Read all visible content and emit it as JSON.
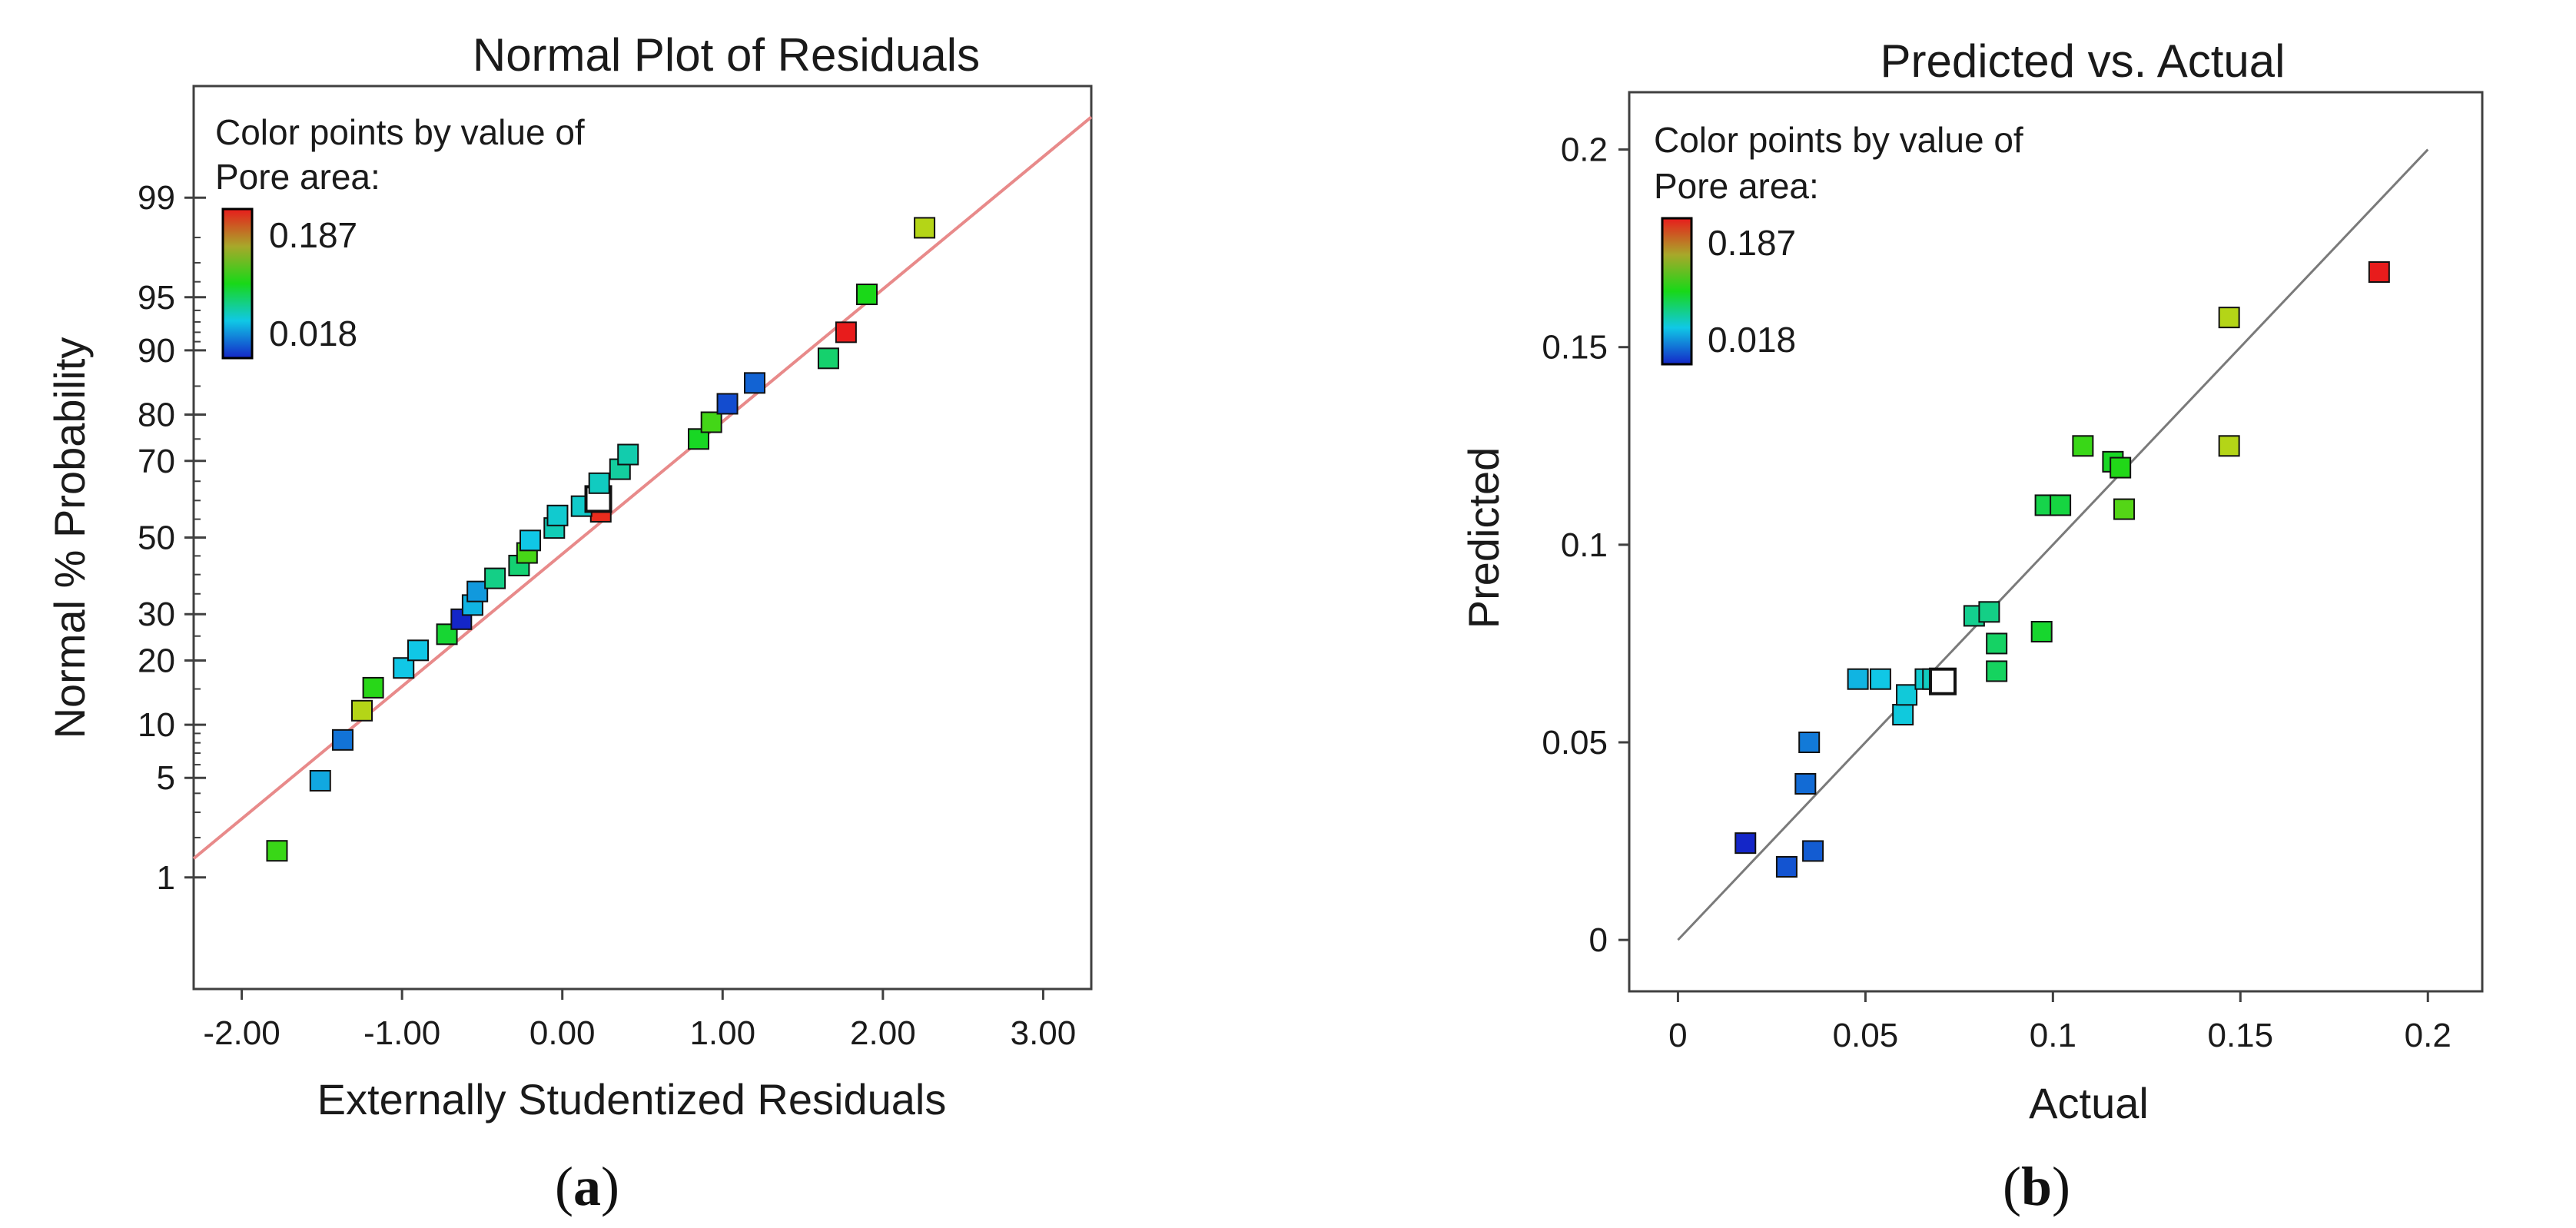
{
  "panel_labels": {
    "a": {
      "open": "(",
      "letter": "a",
      "close": ")"
    },
    "b": {
      "open": "(",
      "letter": "b",
      "close": ")"
    }
  },
  "colors": {
    "fit_line_a": "#e88a8a",
    "fit_line_b": "#7a7a7a",
    "max_label": "#e0191e",
    "min_label": "#1f3fd4"
  },
  "chart_data": [
    {
      "type": "scatter",
      "title": "Normal Plot of Residuals",
      "xlabel": "Externally Studentized Residuals",
      "ylabel": "Normal % Probability",
      "xlim": [
        -2.3,
        3.3
      ],
      "ylim_percent": [
        0.1,
        99.9
      ],
      "y_scale": "normal-probability",
      "x_ticks": [
        "-2.00",
        "-1.00",
        "0.00",
        "1.00",
        "2.00",
        "3.00"
      ],
      "x_tick_values": [
        -2,
        -1,
        0,
        1,
        2,
        3
      ],
      "y_ticks": [
        "1",
        "5",
        "10",
        "20",
        "30",
        "50",
        "70",
        "80",
        "90",
        "95",
        "99"
      ],
      "y_tick_values": [
        1,
        5,
        10,
        20,
        30,
        50,
        70,
        80,
        90,
        95,
        99
      ],
      "legend": {
        "title_line1": "Color points by value of",
        "title_line2": "Pore area:",
        "max_label": "0.187",
        "min_label": "0.018",
        "placement": "top-left"
      },
      "fit_line": {
        "x0": -2.3,
        "p0": 1.4,
        "x1": 3.3,
        "p1": 99.8
      },
      "points": [
        {
          "x": -1.78,
          "p": 1.6,
          "pore_area": 0.112
        },
        {
          "x": -1.51,
          "p": 4.8,
          "pore_area": 0.052
        },
        {
          "x": -1.37,
          "p": 8.3,
          "pore_area": 0.038
        },
        {
          "x": -1.25,
          "p": 11.8,
          "pore_area": 0.147
        },
        {
          "x": -1.18,
          "p": 15.2,
          "pore_area": 0.107
        },
        {
          "x": -0.99,
          "p": 18.6,
          "pore_area": 0.06
        },
        {
          "x": -0.9,
          "p": 22.0,
          "pore_area": 0.06
        },
        {
          "x": -0.72,
          "p": 25.4,
          "pore_area": 0.097
        },
        {
          "x": -0.63,
          "p": 28.8,
          "pore_area": 0.018
        },
        {
          "x": -0.56,
          "p": 32.2,
          "pore_area": 0.055
        },
        {
          "x": -0.53,
          "p": 35.6,
          "pore_area": 0.048
        },
        {
          "x": -0.42,
          "p": 39.0,
          "pore_area": 0.08
        },
        {
          "x": -0.27,
          "p": 42.4,
          "pore_area": 0.084
        },
        {
          "x": -0.22,
          "p": 45.8,
          "pore_area": 0.116
        },
        {
          "x": -0.2,
          "p": 49.2,
          "pore_area": 0.06
        },
        {
          "x": -0.05,
          "p": 52.6,
          "pore_area": 0.07
        },
        {
          "x": -0.03,
          "p": 56.0,
          "pore_area": 0.065
        },
        {
          "x": 0.24,
          "p": 57.0,
          "pore_area": 0.185
        },
        {
          "x": 0.12,
          "p": 58.5,
          "pore_area": 0.066
        },
        {
          "x": 0.21,
          "p": 61.0,
          "pore_area": null
        },
        {
          "x": 0.23,
          "p": 64.5,
          "pore_area": 0.068
        },
        {
          "x": 0.36,
          "p": 68.0,
          "pore_area": 0.075
        },
        {
          "x": 0.41,
          "p": 71.5,
          "pore_area": 0.072
        },
        {
          "x": 0.85,
          "p": 75.0,
          "pore_area": 0.1
        },
        {
          "x": 0.93,
          "p": 78.5,
          "pore_area": 0.115
        },
        {
          "x": 1.03,
          "p": 82.0,
          "pore_area": 0.028
        },
        {
          "x": 1.2,
          "p": 85.5,
          "pore_area": 0.034
        },
        {
          "x": 1.66,
          "p": 89.0,
          "pore_area": 0.085
        },
        {
          "x": 1.77,
          "p": 92.0,
          "pore_area": 0.187
        },
        {
          "x": 1.9,
          "p": 95.2,
          "pore_area": 0.103
        },
        {
          "x": 2.26,
          "p": 98.3,
          "pore_area": 0.147
        }
      ]
    },
    {
      "type": "scatter",
      "title": "Predicted vs. Actual",
      "xlabel": "Actual",
      "ylabel": "Predicted",
      "xlim": [
        -0.013,
        0.2145
      ],
      "ylim": [
        -0.013,
        0.2145
      ],
      "x_ticks": [
        "0",
        "0.05",
        "0.1",
        "0.15",
        "0.2"
      ],
      "x_tick_values": [
        0,
        0.05,
        0.1,
        0.15,
        0.2
      ],
      "y_ticks": [
        "0",
        "0.05",
        "0.1",
        "0.15",
        "0.2"
      ],
      "y_tick_values": [
        0,
        0.05,
        0.1,
        0.15,
        0.2
      ],
      "legend": {
        "title_line1": "Color points by value of",
        "title_line2": "Pore area:",
        "max_label": "0.187",
        "min_label": "0.018",
        "placement": "top-left"
      },
      "fit_line": {
        "x0": 0,
        "y0": 0,
        "x1": 0.2,
        "y1": 0.2
      },
      "points": [
        {
          "x": 0.018,
          "y": 0.0245,
          "pore_area": 0.018
        },
        {
          "x": 0.029,
          "y": 0.0185,
          "pore_area": 0.03
        },
        {
          "x": 0.034,
          "y": 0.0395,
          "pore_area": 0.036
        },
        {
          "x": 0.035,
          "y": 0.05,
          "pore_area": 0.04
        },
        {
          "x": 0.036,
          "y": 0.0225,
          "pore_area": 0.032
        },
        {
          "x": 0.048,
          "y": 0.066,
          "pore_area": 0.055
        },
        {
          "x": 0.054,
          "y": 0.066,
          "pore_area": 0.06
        },
        {
          "x": 0.06,
          "y": 0.057,
          "pore_area": 0.062
        },
        {
          "x": 0.061,
          "y": 0.062,
          "pore_area": 0.063
        },
        {
          "x": 0.066,
          "y": 0.066,
          "pore_area": 0.065
        },
        {
          "x": 0.068,
          "y": 0.066,
          "pore_area": 0.068
        },
        {
          "x": 0.07,
          "y": 0.066,
          "pore_area": null
        },
        {
          "x": 0.079,
          "y": 0.082,
          "pore_area": 0.078
        },
        {
          "x": 0.083,
          "y": 0.083,
          "pore_area": 0.08
        },
        {
          "x": 0.085,
          "y": 0.075,
          "pore_area": 0.087
        },
        {
          "x": 0.085,
          "y": 0.068,
          "pore_area": 0.088
        },
        {
          "x": 0.097,
          "y": 0.078,
          "pore_area": 0.098
        },
        {
          "x": 0.098,
          "y": 0.11,
          "pore_area": 0.092
        },
        {
          "x": 0.102,
          "y": 0.11,
          "pore_area": 0.094
        },
        {
          "x": 0.108,
          "y": 0.125,
          "pore_area": 0.112
        },
        {
          "x": 0.116,
          "y": 0.121,
          "pore_area": 0.1
        },
        {
          "x": 0.118,
          "y": 0.1195,
          "pore_area": 0.105
        },
        {
          "x": 0.119,
          "y": 0.109,
          "pore_area": 0.12
        },
        {
          "x": 0.147,
          "y": 0.1575,
          "pore_area": 0.147
        },
        {
          "x": 0.147,
          "y": 0.125,
          "pore_area": 0.147
        },
        {
          "x": 0.187,
          "y": 0.169,
          "pore_area": 0.187
        }
      ]
    }
  ]
}
